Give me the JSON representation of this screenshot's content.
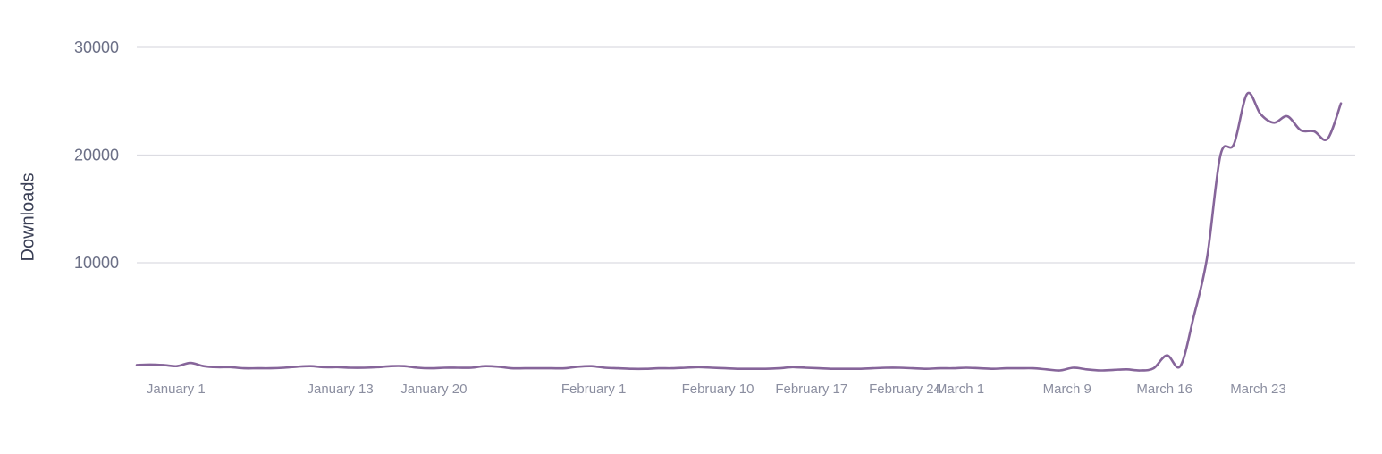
{
  "chart_data": {
    "type": "line",
    "title": "",
    "xlabel": "",
    "ylabel": "Downloads",
    "ylim": [
      0,
      30000
    ],
    "yticks": [
      10000,
      20000,
      30000
    ],
    "grid": true,
    "x_start": "2024-12-29",
    "x_end": "2025-03-27",
    "xticks": [
      {
        "date": "2025-01-01",
        "label": "January 1"
      },
      {
        "date": "2025-01-13",
        "label": "January 13"
      },
      {
        "date": "2025-01-20",
        "label": "January 20"
      },
      {
        "date": "2025-02-01",
        "label": "February 1"
      },
      {
        "date": "2025-02-10",
        "label": "February 10"
      },
      {
        "date": "2025-02-17",
        "label": "February 17"
      },
      {
        "date": "2025-02-24",
        "label": "February 24"
      },
      {
        "date": "2025-03-01",
        "label": "March 1"
      },
      {
        "date": "2025-03-09",
        "label": "March 9"
      },
      {
        "date": "2025-03-16",
        "label": "March 16"
      },
      {
        "date": "2025-03-23",
        "label": "March 23"
      }
    ],
    "series": [
      {
        "color": "#86659a",
        "points": [
          [
            "2024-12-29",
            500
          ],
          [
            "2024-12-30",
            550
          ],
          [
            "2024-12-31",
            500
          ],
          [
            "2025-01-01",
            400
          ],
          [
            "2025-01-02",
            700
          ],
          [
            "2025-01-03",
            400
          ],
          [
            "2025-01-04",
            300
          ],
          [
            "2025-01-05",
            300
          ],
          [
            "2025-01-06",
            200
          ],
          [
            "2025-01-07",
            200
          ],
          [
            "2025-01-08",
            200
          ],
          [
            "2025-01-09",
            250
          ],
          [
            "2025-01-10",
            350
          ],
          [
            "2025-01-11",
            400
          ],
          [
            "2025-01-12",
            300
          ],
          [
            "2025-01-13",
            300
          ],
          [
            "2025-01-14",
            250
          ],
          [
            "2025-01-15",
            250
          ],
          [
            "2025-01-16",
            300
          ],
          [
            "2025-01-17",
            400
          ],
          [
            "2025-01-18",
            400
          ],
          [
            "2025-01-19",
            250
          ],
          [
            "2025-01-20",
            200
          ],
          [
            "2025-01-21",
            250
          ],
          [
            "2025-01-22",
            250
          ],
          [
            "2025-01-23",
            250
          ],
          [
            "2025-01-24",
            400
          ],
          [
            "2025-01-25",
            350
          ],
          [
            "2025-01-26",
            200
          ],
          [
            "2025-01-27",
            200
          ],
          [
            "2025-01-28",
            200
          ],
          [
            "2025-01-29",
            200
          ],
          [
            "2025-01-30",
            200
          ],
          [
            "2025-01-31",
            350
          ],
          [
            "2025-02-01",
            400
          ],
          [
            "2025-02-02",
            250
          ],
          [
            "2025-02-03",
            200
          ],
          [
            "2025-02-04",
            150
          ],
          [
            "2025-02-05",
            150
          ],
          [
            "2025-02-06",
            200
          ],
          [
            "2025-02-07",
            200
          ],
          [
            "2025-02-08",
            250
          ],
          [
            "2025-02-09",
            300
          ],
          [
            "2025-02-10",
            250
          ],
          [
            "2025-02-11",
            200
          ],
          [
            "2025-02-12",
            150
          ],
          [
            "2025-02-13",
            150
          ],
          [
            "2025-02-14",
            150
          ],
          [
            "2025-02-15",
            200
          ],
          [
            "2025-02-16",
            300
          ],
          [
            "2025-02-17",
            250
          ],
          [
            "2025-02-18",
            200
          ],
          [
            "2025-02-19",
            150
          ],
          [
            "2025-02-20",
            150
          ],
          [
            "2025-02-21",
            150
          ],
          [
            "2025-02-22",
            200
          ],
          [
            "2025-02-23",
            250
          ],
          [
            "2025-02-24",
            250
          ],
          [
            "2025-02-25",
            200
          ],
          [
            "2025-02-26",
            150
          ],
          [
            "2025-02-27",
            200
          ],
          [
            "2025-02-28",
            200
          ],
          [
            "2025-03-01",
            250
          ],
          [
            "2025-03-02",
            200
          ],
          [
            "2025-03-03",
            150
          ],
          [
            "2025-03-04",
            200
          ],
          [
            "2025-03-05",
            200
          ],
          [
            "2025-03-06",
            200
          ],
          [
            "2025-03-07",
            100
          ],
          [
            "2025-03-08",
            0
          ],
          [
            "2025-03-09",
            250
          ],
          [
            "2025-03-10",
            100
          ],
          [
            "2025-03-11",
            0
          ],
          [
            "2025-03-12",
            50
          ],
          [
            "2025-03-13",
            100
          ],
          [
            "2025-03-14",
            0
          ],
          [
            "2025-03-15",
            200
          ],
          [
            "2025-03-16",
            1400
          ],
          [
            "2025-03-17",
            400
          ],
          [
            "2025-03-18",
            5000
          ],
          [
            "2025-03-19",
            10500
          ],
          [
            "2025-03-20",
            20000
          ],
          [
            "2025-03-21",
            21000
          ],
          [
            "2025-03-22",
            25700
          ],
          [
            "2025-03-23",
            23800
          ],
          [
            "2025-03-24",
            23000
          ],
          [
            "2025-03-25",
            23600
          ],
          [
            "2025-03-26",
            22300
          ],
          [
            "2025-03-27",
            22200
          ],
          [
            "2025-03-28",
            21500
          ],
          [
            "2025-03-29",
            24800
          ]
        ]
      }
    ]
  }
}
